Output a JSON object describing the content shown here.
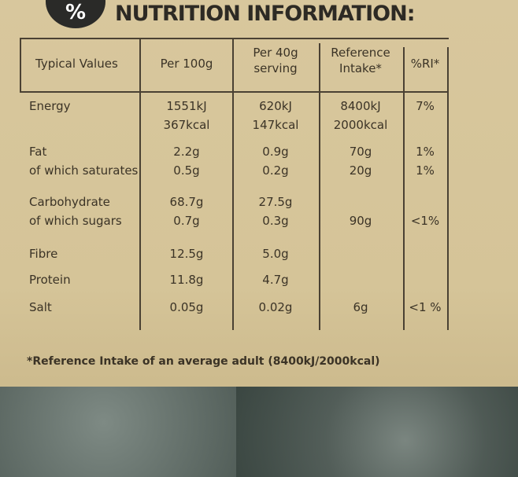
{
  "icon": "%",
  "title": "NUTRITION INFORMATION:",
  "table": {
    "headers": [
      [
        "Typical Values"
      ],
      [
        "Per 100g"
      ],
      [
        "Per 40g",
        "serving"
      ],
      [
        "Reference",
        "Intake*"
      ],
      [
        "%RI*"
      ]
    ],
    "rows": [
      [
        [
          "Energy"
        ],
        [
          "1551kJ",
          "367kcal"
        ],
        [
          "620kJ",
          "147kcal"
        ],
        [
          "8400kJ",
          "2000kcal"
        ],
        [
          "7%"
        ]
      ],
      [
        [
          "Fat",
          "of which saturates"
        ],
        [
          "2.2g",
          "0.5g"
        ],
        [
          "0.9g",
          "0.2g"
        ],
        [
          "70g",
          "20g"
        ],
        [
          "1%",
          "1%"
        ]
      ],
      [
        [
          "Carbohydrate",
          "of which sugars"
        ],
        [
          "68.7g",
          "0.7g"
        ],
        [
          "27.5g",
          "0.3g"
        ],
        [
          null,
          "90g"
        ],
        [
          null,
          "<1%"
        ]
      ],
      [
        [
          "Fibre"
        ],
        [
          "12.5g"
        ],
        [
          "5.0g"
        ],
        [],
        []
      ],
      [
        [
          "Protein"
        ],
        [
          "11.8g"
        ],
        [
          "4.7g"
        ],
        [],
        []
      ],
      [
        [
          "Salt"
        ],
        [
          "0.05g"
        ],
        [
          "0.02g"
        ],
        [
          "6g"
        ],
        [
          "<1 %"
        ]
      ]
    ]
  },
  "footnote": "*Reference Intake of an average adult (8400kJ/2000kcal)"
}
